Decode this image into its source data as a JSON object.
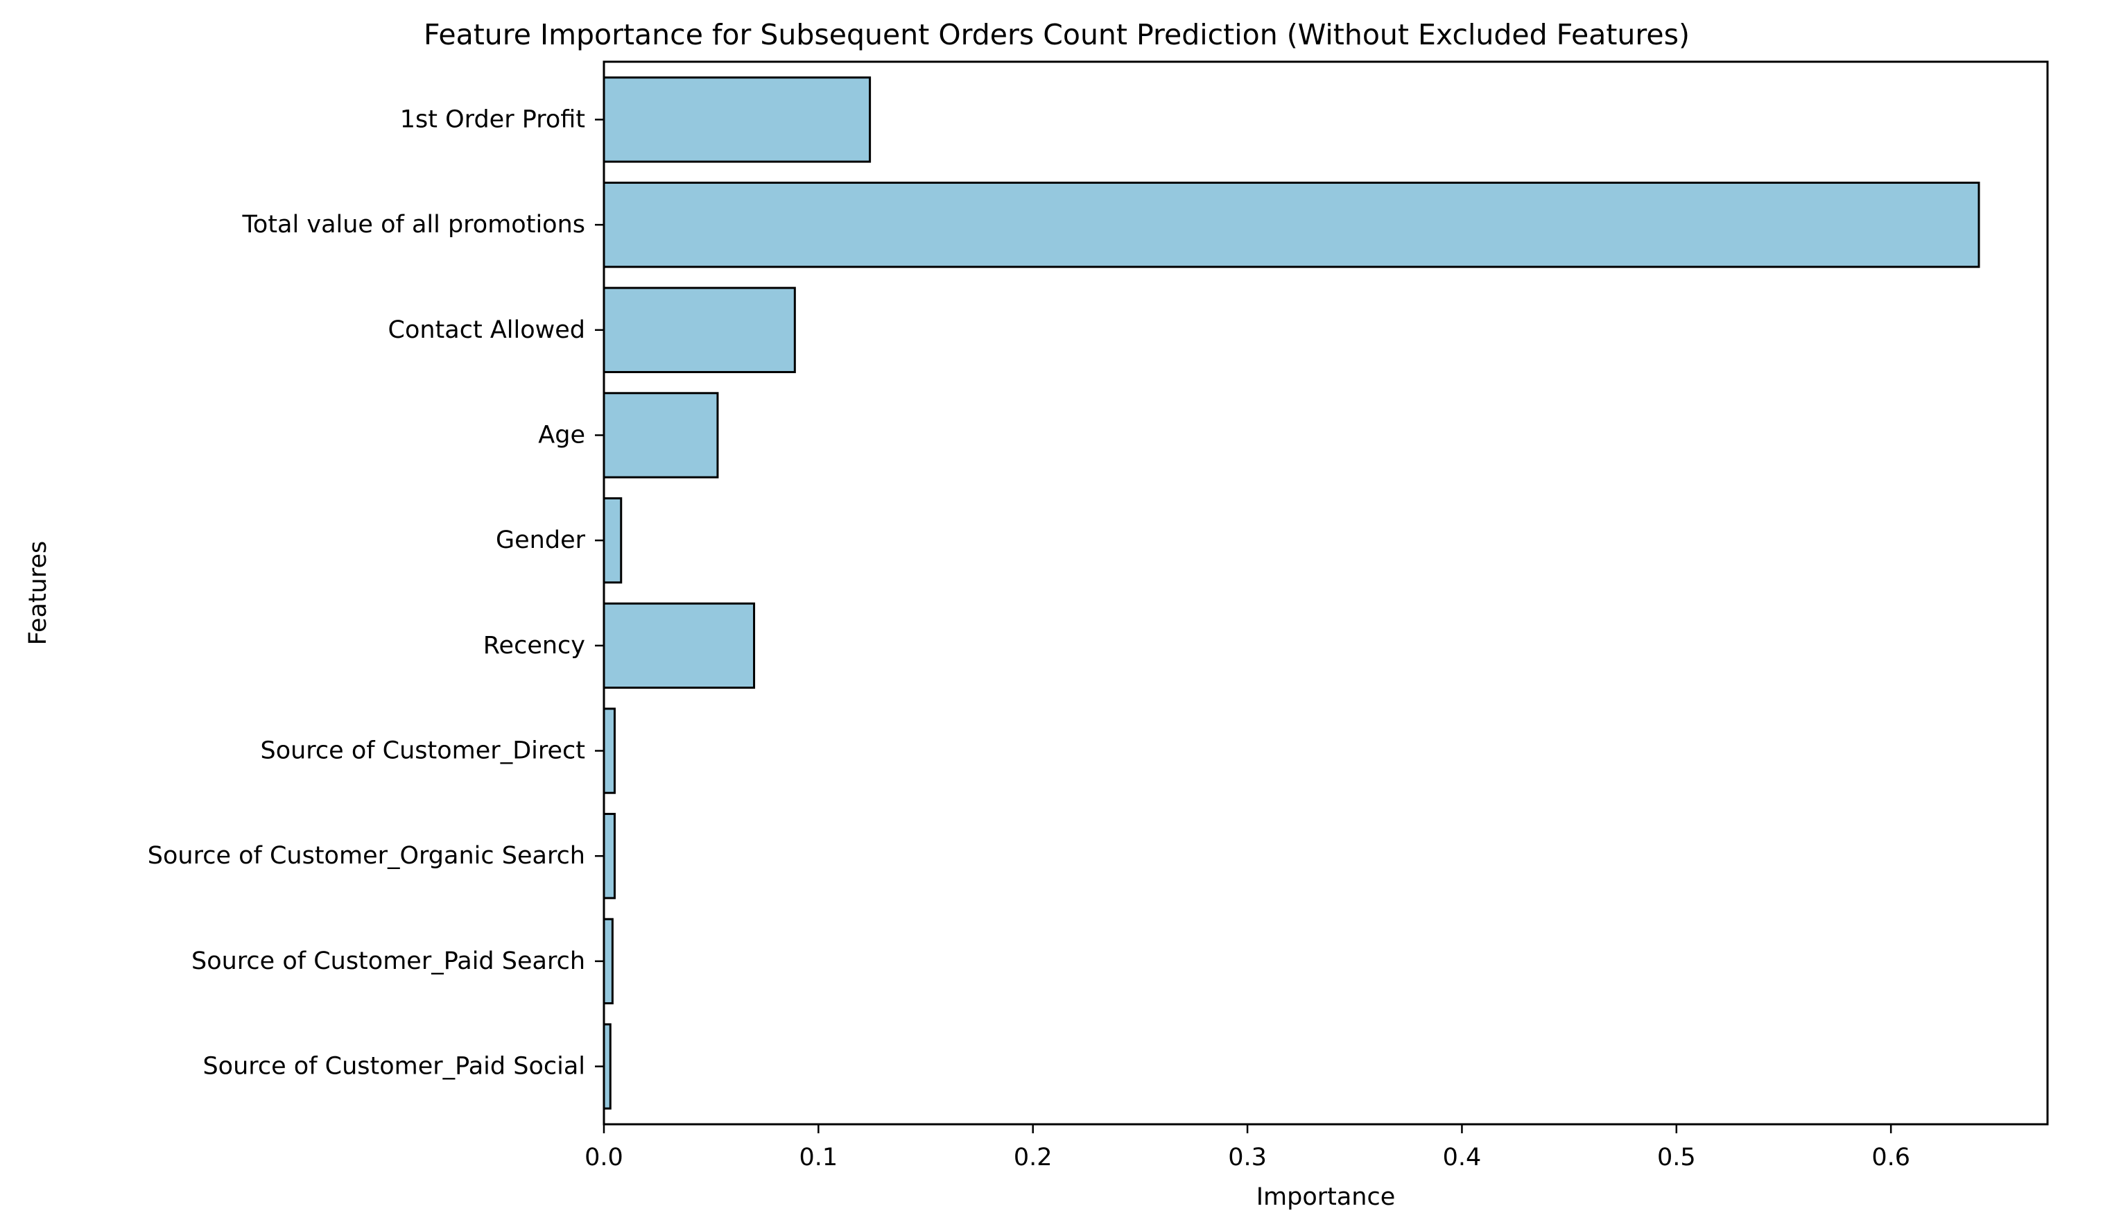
{
  "chart_data": {
    "type": "bar",
    "orientation": "horizontal",
    "title": "Feature Importance for Subsequent Orders Count Prediction (Without Excluded Features)",
    "xlabel": "Importance",
    "ylabel": "Features",
    "categories": [
      "1st Order Profit",
      "Total value of all promotions",
      "Contact Allowed",
      "Age",
      "Gender",
      "Recency",
      "Source of Customer_Direct",
      "Source of Customer_Organic Search",
      "Source of Customer_Paid Search",
      "Source of Customer_Paid Social"
    ],
    "values": [
      0.124,
      0.641,
      0.089,
      0.053,
      0.008,
      0.07,
      0.005,
      0.005,
      0.004,
      0.003
    ],
    "xlim": [
      0,
      0.673
    ],
    "xticks": [
      "0.0",
      "0.1",
      "0.2",
      "0.3",
      "0.4",
      "0.5",
      "0.6"
    ],
    "xtick_values": [
      0,
      0.1,
      0.2,
      0.3,
      0.4,
      0.5,
      0.6
    ],
    "grid": false,
    "legend": "none",
    "colors": {
      "bar_fill": "#95c8de",
      "bar_edge": "#000000"
    }
  }
}
